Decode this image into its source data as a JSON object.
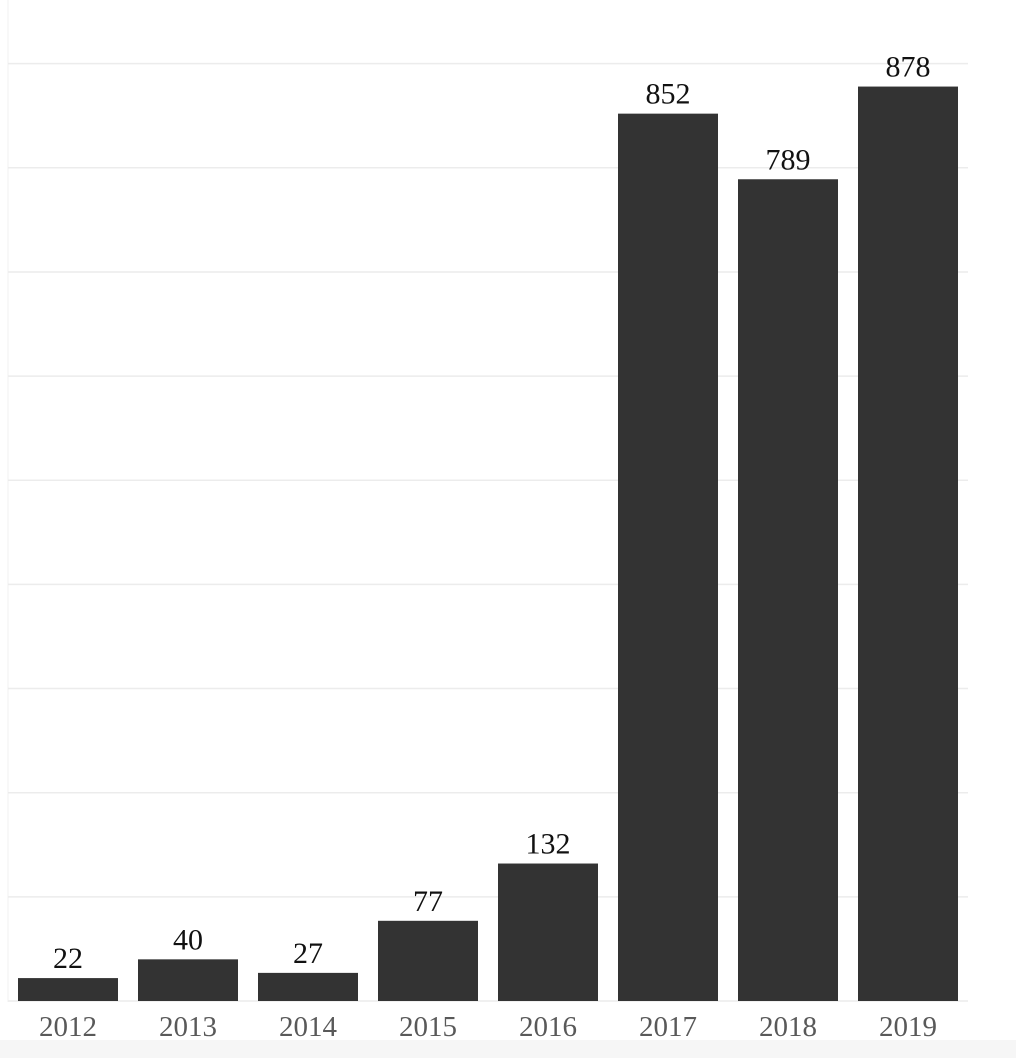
{
  "chart_data": {
    "type": "bar",
    "title": "",
    "xlabel": "",
    "ylabel": "",
    "categories": [
      "2012",
      "2013",
      "2014",
      "2015",
      "2016",
      "2017",
      "2018",
      "2019"
    ],
    "values": [
      22,
      40,
      27,
      77,
      132,
      852,
      789,
      878
    ],
    "data_labels": [
      "22",
      "40",
      "27",
      "77",
      "132",
      "852",
      "789",
      "878"
    ],
    "ylim": [
      0,
      900
    ],
    "ygrid_step": 100,
    "grid": true,
    "legend": "none",
    "colors": {
      "bar": "#333333",
      "grid": "#ececec",
      "tick_text": "#595959",
      "value_text": "#111111"
    }
  }
}
